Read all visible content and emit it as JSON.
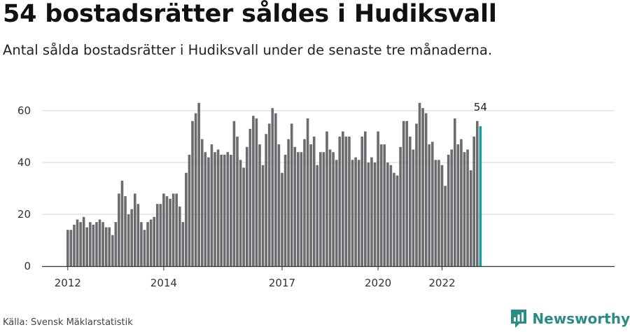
{
  "header": {
    "title": "54 bostadsrätter såldes i Hudiksvall",
    "subtitle": "Antal sålda bostadsrätter i Hudiksvall under de senaste tre månaderna."
  },
  "footer": {
    "source": "Källa: Svensk Mäklarstatistik",
    "brand": "Newsworthy"
  },
  "colors": {
    "bar": "#6b6b70",
    "highlight": "#1f9a96",
    "grid": "#d6d6d6",
    "brand": "#2a8c84"
  },
  "chart_data": {
    "type": "bar",
    "title": "",
    "xlabel": "",
    "ylabel": "",
    "ylim": [
      0,
      70
    ],
    "yticks": [
      0,
      20,
      40,
      60
    ],
    "grid": true,
    "x_tick_labels": [
      "2012",
      "2014",
      "2017",
      "2020",
      "2022"
    ],
    "highlight_label": "54",
    "values": [
      14,
      14,
      16,
      18,
      17,
      19,
      15,
      17,
      16,
      17,
      18,
      17,
      15,
      15,
      12,
      17,
      28,
      33,
      27,
      20,
      22,
      28,
      24,
      17,
      14,
      17,
      18,
      19,
      24,
      24,
      28,
      27,
      26,
      28,
      28,
      23,
      17,
      36,
      43,
      56,
      59,
      63,
      49,
      44,
      42,
      47,
      44,
      45,
      43,
      43,
      44,
      43,
      56,
      50,
      41,
      38,
      46,
      53,
      58,
      57,
      47,
      39,
      51,
      55,
      61,
      59,
      47,
      36,
      43,
      49,
      55,
      46,
      44,
      44,
      49,
      57,
      47,
      50,
      39,
      44,
      44,
      52,
      45,
      44,
      41,
      50,
      52,
      50,
      50,
      41,
      42,
      41,
      50,
      52,
      40,
      42,
      40,
      52,
      47,
      47,
      40,
      39,
      36,
      35,
      46,
      56,
      56,
      50,
      45,
      55,
      63,
      61,
      59,
      47,
      48,
      41,
      41,
      39,
      31,
      43,
      45,
      57,
      47,
      49,
      44,
      45,
      37,
      50,
      56,
      54
    ]
  }
}
